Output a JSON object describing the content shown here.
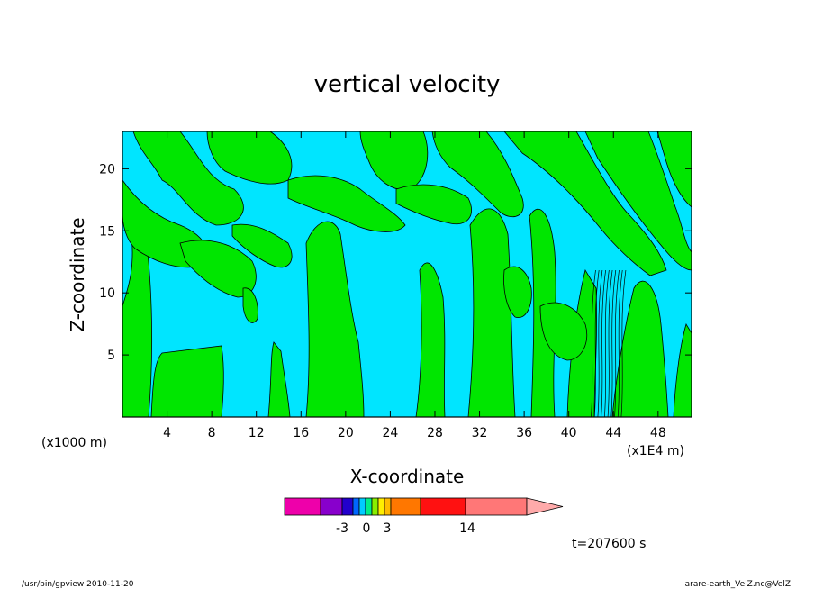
{
  "chart_data": {
    "type": "heatmap",
    "title": "vertical velocity",
    "xlabel": "X-coordinate",
    "ylabel": "Z-coordinate",
    "x_unit": "(x1E4 m)",
    "y_unit": "(x1000 m)",
    "xlim": [
      0,
      51
    ],
    "ylim": [
      0,
      23
    ],
    "x_ticks": [
      4,
      8,
      12,
      16,
      20,
      24,
      28,
      32,
      36,
      40,
      44,
      48
    ],
    "y_ticks": [
      5,
      10,
      15,
      20
    ],
    "x_tick_labels": [
      "4",
      "8",
      "12",
      "16",
      "20",
      "24",
      "28",
      "32",
      "36",
      "40",
      "44",
      "48"
    ],
    "y_tick_labels": [
      "5",
      "10",
      "15",
      "20"
    ],
    "colors": {
      "negative": "#00e5ff",
      "positive": "#00e600"
    },
    "colorbar": {
      "tick_labels": [
        "-3",
        "0",
        "3",
        "14"
      ],
      "colors": [
        "#ee00aa",
        "#8800cc",
        "#2200cc",
        "#0066ff",
        "#00ccff",
        "#00ee88",
        "#88ee00",
        "#ffee00",
        "#ffbb00",
        "#ff7700",
        "#ff1111",
        "#ff7777",
        "#ffaaaa"
      ]
    },
    "time_label": "t=207600 s"
  },
  "footer": {
    "left": "/usr/bin/gpview   2010-11-20",
    "right": "arare-earth_VelZ.nc@VelZ"
  }
}
